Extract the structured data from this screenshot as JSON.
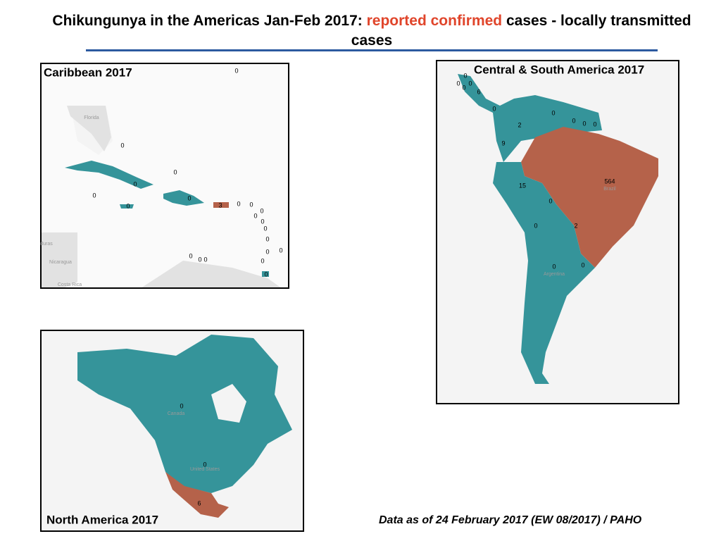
{
  "title": {
    "part1": "Chikungunya in the Americas Jan-Feb 2017:",
    "highlight": "reported confirmed",
    "part2": "cases - locally transmitted cases"
  },
  "maps": [
    {
      "title": "Caribbean 2017",
      "places": [
        "Florida",
        "duras",
        "Nicaragua",
        "Costa Rica"
      ],
      "counts": [
        0,
        0,
        0,
        0,
        0,
        0,
        0,
        3,
        0,
        0,
        0,
        0,
        0,
        0,
        0,
        0,
        0,
        0,
        0,
        0,
        0,
        0
      ]
    },
    {
      "title": "Central & South America  2017",
      "places": [
        "Brazil",
        "Argentina"
      ],
      "counts": [
        0,
        0,
        0,
        0,
        6,
        0,
        0,
        0,
        0,
        0,
        2,
        9,
        15,
        564,
        0,
        0,
        2,
        0,
        0
      ]
    },
    {
      "title": "North America 2017",
      "places": [
        "Canada",
        "United States"
      ],
      "counts": [
        0,
        0,
        6
      ]
    }
  ],
  "footnote": "Data as of 24 February 2017 (EW 08/2017) / PAHO"
}
